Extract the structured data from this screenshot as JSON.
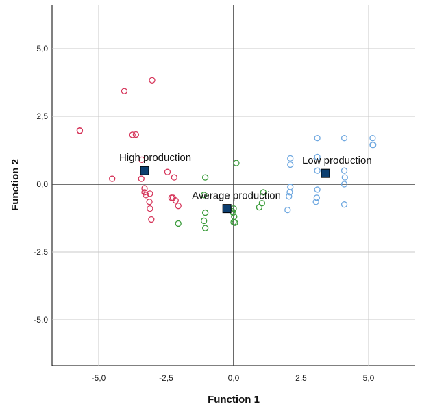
{
  "chart_data": {
    "type": "scatter",
    "title": "",
    "xlabel": "Function 1",
    "ylabel": "Function 2",
    "xlim": [
      -6.7,
      6.7
    ],
    "ylim": [
      -6.7,
      6.7
    ],
    "x_ticks": [
      -5,
      -2.5,
      0,
      2.5,
      5
    ],
    "y_ticks": [
      -5,
      -2.5,
      0,
      2.5,
      5
    ],
    "x_tick_labels": [
      "-5,0",
      "-2,5",
      "0,0",
      "2,5",
      "5,0"
    ],
    "y_tick_labels": [
      "-5,0",
      "-2,5",
      "0,0",
      "2,5",
      "5,0"
    ],
    "grid": true,
    "series": [
      {
        "color": "#d6365b",
        "marker": "open-circle",
        "points": [
          [
            -5.7,
            1.97
          ],
          [
            -5.7,
            1.98
          ],
          [
            -4.05,
            3.43
          ],
          [
            -3.02,
            3.83
          ],
          [
            -3.75,
            1.82
          ],
          [
            -3.62,
            1.83
          ],
          [
            -3.4,
            0.9
          ],
          [
            -3.42,
            0.2
          ],
          [
            -3.3,
            -0.15
          ],
          [
            -3.3,
            -0.3
          ],
          [
            -3.25,
            -0.4
          ],
          [
            -3.1,
            -0.35
          ],
          [
            -3.12,
            -0.65
          ],
          [
            -3.1,
            -0.9
          ],
          [
            -3.05,
            -1.3
          ],
          [
            -4.5,
            0.2
          ],
          [
            -2.45,
            0.45
          ],
          [
            -2.2,
            0.25
          ],
          [
            -2.3,
            -0.5
          ],
          [
            -2.25,
            -0.5
          ],
          [
            -2.15,
            -0.6
          ],
          [
            -2.05,
            -0.8
          ]
        ]
      },
      {
        "color": "#3b9c3b",
        "marker": "open-circle",
        "points": [
          [
            0.1,
            0.78
          ],
          [
            -1.05,
            0.25
          ],
          [
            -1.1,
            -0.4
          ],
          [
            -1.05,
            -1.05
          ],
          [
            -1.1,
            -1.35
          ],
          [
            -1.05,
            -1.62
          ],
          [
            -2.05,
            -1.45
          ],
          [
            0.0,
            -0.9
          ],
          [
            -0.02,
            -1.05
          ],
          [
            0.02,
            -1.2
          ],
          [
            0.0,
            -1.4
          ],
          [
            0.05,
            -1.42
          ],
          [
            -0.05,
            -1.0
          ],
          [
            1.1,
            -0.3
          ],
          [
            1.05,
            -0.7
          ],
          [
            0.95,
            -0.85
          ]
        ]
      },
      {
        "color": "#6fa8e0",
        "marker": "open-circle",
        "points": [
          [
            2.1,
            0.95
          ],
          [
            2.1,
            0.72
          ],
          [
            2.1,
            -0.1
          ],
          [
            2.08,
            -0.3
          ],
          [
            2.05,
            -0.45
          ],
          [
            2.0,
            -0.95
          ],
          [
            3.1,
            1.7
          ],
          [
            3.1,
            1.0
          ],
          [
            3.1,
            0.5
          ],
          [
            3.1,
            -0.2
          ],
          [
            3.08,
            -0.5
          ],
          [
            3.05,
            -0.65
          ],
          [
            4.1,
            1.7
          ],
          [
            4.1,
            0.5
          ],
          [
            4.12,
            0.25
          ],
          [
            4.1,
            0.0
          ],
          [
            4.1,
            -0.75
          ],
          [
            5.15,
            1.7
          ],
          [
            5.15,
            1.45
          ],
          [
            5.17,
            1.45
          ]
        ]
      }
    ],
    "centroids": [
      {
        "label": "High production",
        "x": -3.3,
        "y": 0.5
      },
      {
        "label": "Average production",
        "x": -0.25,
        "y": -0.9
      },
      {
        "label": "Low production",
        "x": 3.4,
        "y": 0.4
      }
    ],
    "centroid_color": "#0d3f70"
  }
}
